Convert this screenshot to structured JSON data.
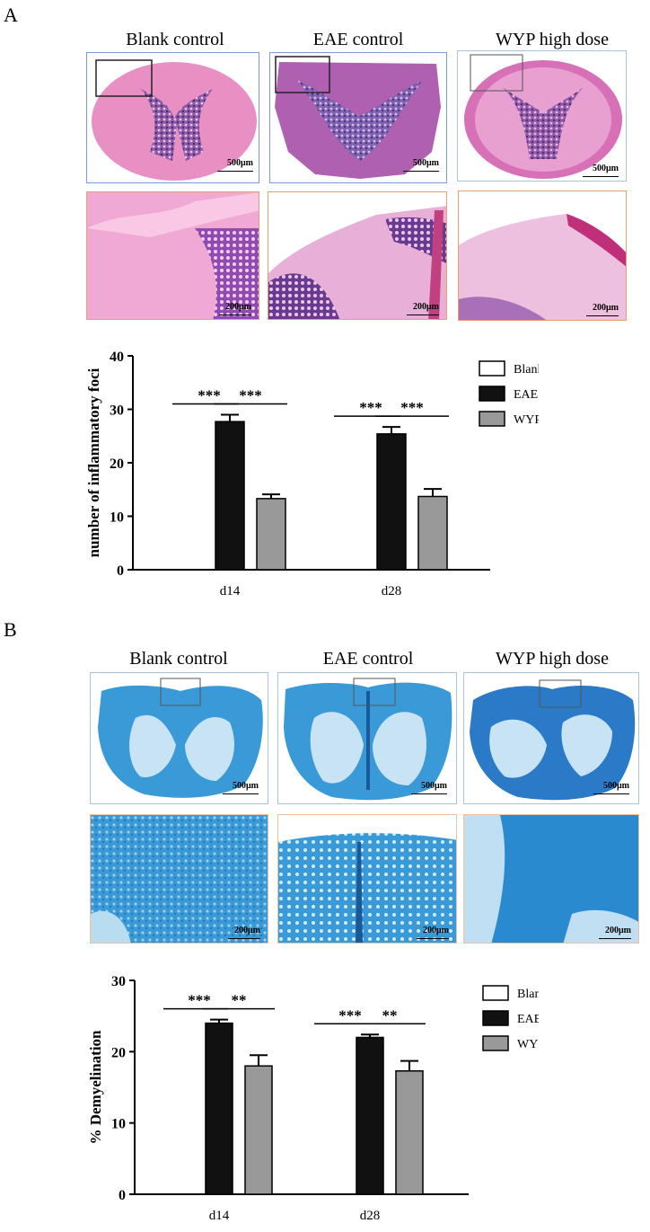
{
  "panels": [
    {
      "letter": "A",
      "columns": [
        "Blank control",
        "EAE control",
        "WYP high dose"
      ],
      "scale_top": "500μm",
      "scale_bottom": "200μm"
    },
    {
      "letter": "B",
      "columns": [
        "Blank control",
        "EAE control",
        "WYP high dose"
      ],
      "scale_top": "500μm",
      "scale_bottom": "200μm"
    }
  ],
  "chart_data": [
    {
      "type": "bar",
      "title": "",
      "categories": [
        "d14",
        "d28"
      ],
      "ylabel": "number of inflammatory foci",
      "xlabel": "",
      "ylim": [
        0,
        40
      ],
      "yticks": [
        "0",
        "10",
        "20",
        "30",
        "40"
      ],
      "series": [
        {
          "name": "Blank control",
          "values": [
            0,
            0
          ],
          "errors": [
            0,
            0
          ],
          "color": "#ffffff"
        },
        {
          "name": "EAE control",
          "values": [
            27.7,
            25.4
          ],
          "errors": [
            1.3,
            1.3
          ],
          "color": "#111111"
        },
        {
          "name": "WYP high dose",
          "values": [
            13.3,
            13.7
          ],
          "errors": [
            0.8,
            1.4
          ],
          "color": "#999999"
        }
      ],
      "significance": [
        {
          "category": "d14",
          "pair": [
            "Blank control",
            "EAE control"
          ],
          "label": "***"
        },
        {
          "category": "d14",
          "pair": [
            "EAE control",
            "WYP high dose"
          ],
          "label": "***"
        },
        {
          "category": "d28",
          "pair": [
            "Blank control",
            "EAE control"
          ],
          "label": "***"
        },
        {
          "category": "d28",
          "pair": [
            "EAE control",
            "WYP high dose"
          ],
          "label": "***"
        }
      ],
      "legend": "right"
    },
    {
      "type": "bar",
      "title": "",
      "categories": [
        "d14",
        "d28"
      ],
      "ylabel": "% Demyelination",
      "xlabel": "",
      "ylim": [
        0,
        30
      ],
      "yticks": [
        "0",
        "10",
        "20",
        "30"
      ],
      "series": [
        {
          "name": "Blank control",
          "values": [
            0,
            0
          ],
          "errors": [
            0,
            0
          ],
          "color": "#ffffff"
        },
        {
          "name": "EAE control",
          "values": [
            24.0,
            22.0
          ],
          "errors": [
            0.5,
            0.4
          ],
          "color": "#111111"
        },
        {
          "name": "WYP high dose",
          "values": [
            18.0,
            17.3
          ],
          "errors": [
            1.5,
            1.4
          ],
          "color": "#999999"
        }
      ],
      "significance": [
        {
          "category": "d14",
          "pair": [
            "Blank control",
            "EAE control"
          ],
          "label": "***"
        },
        {
          "category": "d14",
          "pair": [
            "EAE control",
            "WYP high dose"
          ],
          "label": "**"
        },
        {
          "category": "d28",
          "pair": [
            "Blank control",
            "EAE control"
          ],
          "label": "***"
        },
        {
          "category": "d28",
          "pair": [
            "EAE control",
            "WYP high dose"
          ],
          "label": "**"
        }
      ],
      "legend": "right"
    }
  ]
}
